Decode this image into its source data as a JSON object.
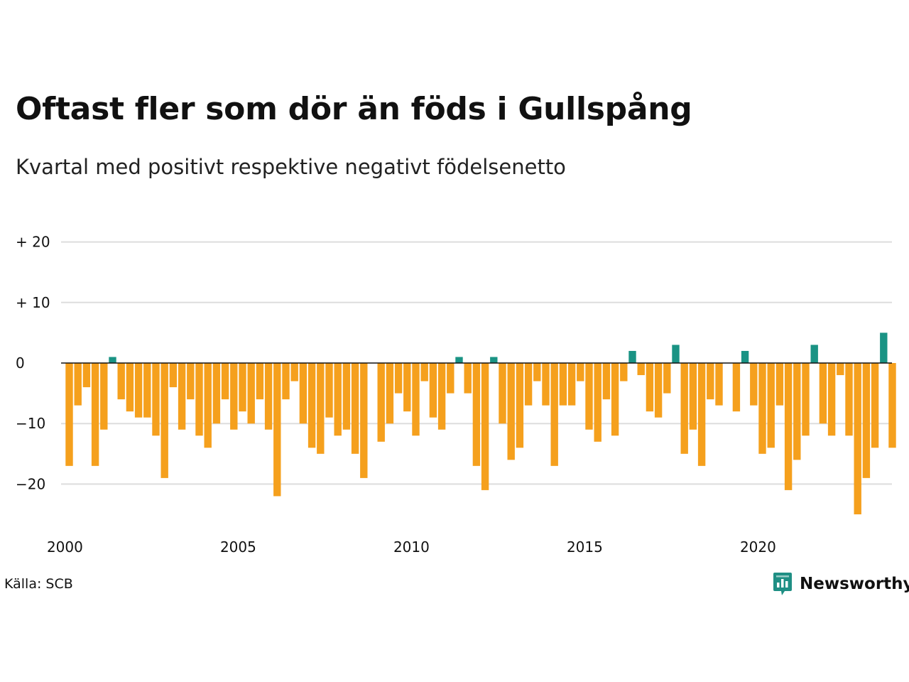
{
  "title": "Oftast fler som dör än föds i Gullspång",
  "subtitle": "Kvartal med positivt respektive negativt födelsenetto",
  "source": "Källa: SCB",
  "brand": {
    "name": "Newsworthy",
    "icon": "newsworthy-logo-icon",
    "color": "#1f8f84"
  },
  "colors": {
    "positive": "#1a9384",
    "negative": "#f5a01d",
    "grid": "#dddddd",
    "zero": "#111111"
  },
  "chart_data": {
    "type": "bar",
    "title": "Oftast fler som dör än föds i Gullspång",
    "subtitle": "Kvartal med positivt respektive negativt födelsenetto",
    "x_start": 2000,
    "periods_per_year": 4,
    "values": [
      -17,
      -7,
      -4,
      -17,
      -11,
      1,
      -6,
      -8,
      -9,
      -9,
      -12,
      -19,
      -4,
      -11,
      -6,
      -12,
      -14,
      -10,
      -6,
      -11,
      -8,
      -10,
      -6,
      -11,
      -22,
      -6,
      -3,
      -10,
      -14,
      -15,
      -9,
      -12,
      -11,
      -15,
      -19,
      0,
      -13,
      -10,
      -5,
      -8,
      -12,
      -3,
      -9,
      -11,
      -5,
      1,
      -5,
      -17,
      -21,
      1,
      -10,
      -16,
      -14,
      -7,
      -3,
      -7,
      -17,
      -7,
      -7,
      -3,
      -11,
      -13,
      -6,
      -12,
      -3,
      2,
      -2,
      -8,
      -9,
      -5,
      3,
      -15,
      -11,
      -17,
      -6,
      -7,
      0,
      -8,
      2,
      -7,
      -15,
      -14,
      -7,
      -21,
      -16,
      -12,
      3,
      -10,
      -12,
      -2,
      -12,
      -25,
      -19,
      -14,
      5,
      -14
    ],
    "ylim": [
      -27,
      22
    ],
    "yticks": [
      20,
      10,
      0,
      -10,
      -20
    ],
    "ytick_labels": [
      "+ 20",
      "+ 10",
      "0",
      "−10",
      "−20"
    ],
    "xticks": [
      2000,
      2005,
      2010,
      2015,
      2020
    ],
    "xtick_labels": [
      "2000",
      "2005",
      "2010",
      "2015",
      "2020"
    ],
    "grid": true,
    "legend": false
  }
}
